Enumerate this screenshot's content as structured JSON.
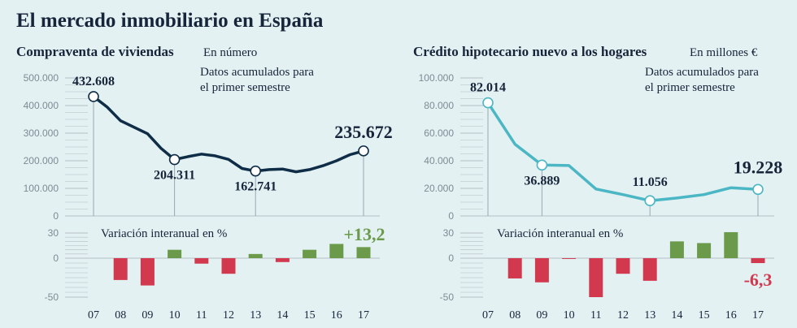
{
  "title": "El mercado inmobiliario en España",
  "colors": {
    "background": "#e3f1f3",
    "line_left": "#0f2d46",
    "line_right": "#4bb6c4",
    "positive": "#6a9a4a",
    "negative": "#d2394e",
    "grid": "#b4bec4"
  },
  "chart_data": [
    {
      "type": "line",
      "title": "Compraventa de viviendas",
      "unit": "En número",
      "note_lines": [
        "Datos acumulados para",
        "el primer semestre"
      ],
      "ylim": [
        0,
        500000
      ],
      "yticks": [
        "500.000",
        "400.000",
        "300.000",
        "200.000",
        "100.000",
        "0"
      ],
      "ytick_values": [
        500000,
        400000,
        300000,
        200000,
        100000,
        0
      ],
      "x_years": [
        7,
        8,
        9,
        10,
        11,
        12,
        13,
        14,
        15,
        16,
        17
      ],
      "series": [
        {
          "x": [
            7,
            7.5,
            8,
            9,
            9.5,
            10,
            10.5,
            11,
            11.5,
            12,
            12.5,
            13,
            13.5,
            14,
            14.5,
            15,
            15.5,
            16,
            16.5,
            17
          ],
          "values": [
            432608,
            395000,
            345000,
            298000,
            245000,
            204311,
            215000,
            224000,
            218000,
            205000,
            172000,
            162741,
            168000,
            170000,
            160000,
            168000,
            182000,
            200000,
            222000,
            235672
          ]
        }
      ],
      "highlights": [
        {
          "x": 7,
          "value": 432608,
          "label": "432.608"
        },
        {
          "x": 10,
          "value": 204311,
          "label": "204.311"
        },
        {
          "x": 13,
          "value": 162741,
          "label": "162.741"
        },
        {
          "x": 17,
          "value": 235672,
          "label": "235.672"
        }
      ],
      "variation": {
        "title": "Variación interanual en %",
        "ylim": [
          -50,
          30
        ],
        "yticks": [
          "30",
          "0",
          "-50"
        ],
        "ytick_values": [
          30,
          0,
          -50
        ],
        "categories": [
          "07",
          "08",
          "09",
          "10",
          "11",
          "12",
          "13",
          "14",
          "15",
          "16",
          "17"
        ],
        "values": [
          0,
          -28,
          -35,
          10,
          -7,
          -20,
          5,
          -5,
          10,
          17,
          13.2
        ],
        "last_label": "+13,2"
      }
    },
    {
      "type": "line",
      "title": "Crédito hipotecario nuevo a los hogares",
      "unit": "En millones €",
      "note_lines": [
        "Datos acumulados para",
        "el primer semestre"
      ],
      "ylim": [
        0,
        100000
      ],
      "yticks": [
        "100.000",
        "80.000",
        "60.000",
        "40.000",
        "20.000",
        "0"
      ],
      "ytick_values": [
        100000,
        80000,
        60000,
        40000,
        20000,
        0
      ],
      "x_years": [
        7,
        8,
        9,
        10,
        11,
        12,
        13,
        14,
        15,
        16,
        17
      ],
      "series": [
        {
          "x": [
            7,
            8,
            9,
            10,
            11,
            12,
            13,
            14,
            15,
            16,
            17
          ],
          "values": [
            82014,
            52000,
            36889,
            36500,
            19500,
            15500,
            11056,
            13000,
            15500,
            20500,
            19228
          ]
        }
      ],
      "highlights": [
        {
          "x": 7,
          "value": 82014,
          "label": "82.014"
        },
        {
          "x": 9,
          "value": 36889,
          "label": "36.889"
        },
        {
          "x": 13,
          "value": 11056,
          "label": "11.056"
        },
        {
          "x": 17,
          "value": 19228,
          "label": "19.228"
        }
      ],
      "variation": {
        "title": "Variación interanual en %",
        "ylim": [
          -50,
          30
        ],
        "yticks": [
          "30",
          "0",
          "-50"
        ],
        "ytick_values": [
          30,
          0,
          -50
        ],
        "categories": [
          "07",
          "08",
          "09",
          "10",
          "11",
          "12",
          "13",
          "14",
          "15",
          "16",
          "17"
        ],
        "values": [
          0,
          -26,
          -31,
          -1,
          -50,
          -20,
          -29,
          20,
          18,
          31,
          -6.3
        ],
        "last_label": "-6,3"
      }
    }
  ]
}
